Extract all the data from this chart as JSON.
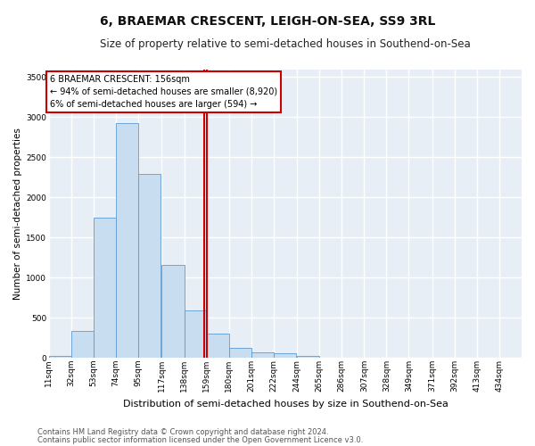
{
  "title": "6, BRAEMAR CRESCENT, LEIGH-ON-SEA, SS9 3RL",
  "subtitle": "Size of property relative to semi-detached houses in Southend-on-Sea",
  "xlabel": "Distribution of semi-detached houses by size in Southend-on-Sea",
  "ylabel": "Number of semi-detached properties",
  "annotation_line1": "6 BRAEMAR CRESCENT: 156sqm",
  "annotation_line2": "← 94% of semi-detached houses are smaller (8,920)",
  "annotation_line3": "6% of semi-detached houses are larger (594) →",
  "footer_line1": "Contains HM Land Registry data © Crown copyright and database right 2024.",
  "footer_line2": "Contains public sector information licensed under the Open Government Licence v3.0.",
  "bar_color": "#c9ddf0",
  "bar_edge_color": "#5b9bd5",
  "property_size": 156,
  "categories": [
    "11sqm",
    "32sqm",
    "53sqm",
    "74sqm",
    "95sqm",
    "117sqm",
    "138sqm",
    "159sqm",
    "180sqm",
    "201sqm",
    "222sqm",
    "244sqm",
    "265sqm",
    "286sqm",
    "307sqm",
    "328sqm",
    "349sqm",
    "371sqm",
    "392sqm",
    "413sqm",
    "434sqm"
  ],
  "bin_starts": [
    11,
    32,
    53,
    74,
    95,
    117,
    138,
    159,
    180,
    201,
    222,
    244,
    265,
    286,
    307,
    328,
    349,
    371,
    392,
    413,
    434
  ],
  "bin_width": 21,
  "values": [
    30,
    340,
    1750,
    2930,
    2290,
    1160,
    590,
    300,
    130,
    75,
    55,
    30,
    0,
    0,
    0,
    0,
    0,
    0,
    0,
    0,
    0
  ],
  "ylim": [
    0,
    3600
  ],
  "yticks": [
    0,
    500,
    1000,
    1500,
    2000,
    2500,
    3000,
    3500
  ],
  "bg_color": "#e8eef5",
  "grid_color": "#ffffff",
  "annotation_box_color": "#ffffff",
  "annotation_box_edge": "#cc0000",
  "red_line_color": "#cc0000",
  "title_fontsize": 10,
  "subtitle_fontsize": 8.5,
  "axis_label_fontsize": 7.5,
  "tick_fontsize": 6.5,
  "annotation_fontsize": 7,
  "footer_fontsize": 6
}
